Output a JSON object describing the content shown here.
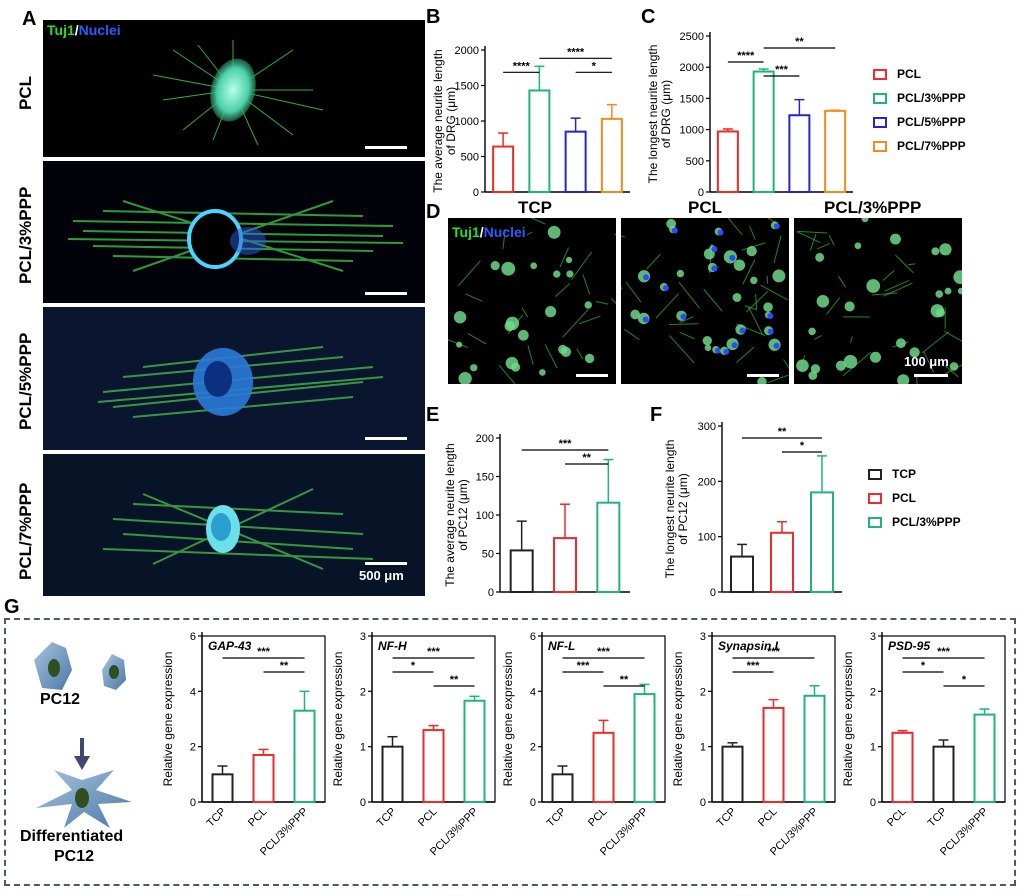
{
  "panels": {
    "A": "A",
    "B": "B",
    "C": "C",
    "D": "D",
    "E": "E",
    "F": "F",
    "G": "G"
  },
  "panelA": {
    "stain": {
      "a": "Tuj1",
      "sep": "/",
      "b": "Nuclei"
    },
    "rows": [
      "PCL",
      "PCL/3%PPP",
      "PCL/5%PPP",
      "PCL/7%PPP"
    ],
    "scale": "500 μm"
  },
  "panelD": {
    "stain": {
      "a": "Tuj1",
      "sep": "/",
      "b": "Nuclei"
    },
    "titles": [
      "TCP",
      "PCL",
      "PCL/3%PPP"
    ],
    "scale": "100 μm"
  },
  "legend1": [
    {
      "label": "PCL",
      "color": "#ee2a2a"
    },
    {
      "label": "PCL/3%PPP",
      "color": "#1fb57a"
    },
    {
      "label": "PCL/5%PPP",
      "color": "#2424d6"
    },
    {
      "label": "PCL/7%PPP",
      "color": "#f28c1e"
    }
  ],
  "legend2": [
    {
      "label": "TCP",
      "color": "#222222"
    },
    {
      "label": "PCL",
      "color": "#ee2a2a"
    },
    {
      "label": "PCL/3%PPP",
      "color": "#1fb57a"
    }
  ],
  "panelG": {
    "pc12": "PC12",
    "diff1": "Differentiated",
    "diff2": "PC12"
  },
  "chart_data": [
    {
      "id": "B",
      "type": "bar",
      "categories": [
        "PCL",
        "PCL/3%PPP",
        "PCL/5%PPP",
        "PCL/7%PPP"
      ],
      "values": [
        640,
        1430,
        850,
        1030
      ],
      "errors": [
        190,
        340,
        190,
        200
      ],
      "ylabel": [
        "The average neurite length",
        "of DRG (μm)"
      ],
      "ylim": [
        0,
        2000
      ],
      "yticks": [
        0,
        500,
        1000,
        1500,
        2000
      ],
      "colors": [
        "#ee2a2a",
        "#1fb57a",
        "#2424d6",
        "#f28c1e"
      ],
      "italic_title": "",
      "sig": [
        {
          "a": 0,
          "b": 1,
          "text": "****"
        },
        {
          "a": 1,
          "b": 3,
          "text": "****"
        },
        {
          "a": 2,
          "b": 3,
          "text": "*"
        }
      ]
    },
    {
      "id": "C",
      "type": "bar",
      "categories": [
        "PCL",
        "PCL/3%PPP",
        "PCL/5%PPP",
        "PCL/7%PPP"
      ],
      "values": [
        970,
        1930,
        1230,
        1300
      ],
      "errors": [
        40,
        40,
        250,
        10
      ],
      "ylabel": [
        "The longest neurite length",
        "of DRG (μm)"
      ],
      "ylim": [
        0,
        2500
      ],
      "yticks": [
        0,
        500,
        1000,
        1500,
        2000,
        2500
      ],
      "colors": [
        "#ee2a2a",
        "#1fb57a",
        "#2424d6",
        "#f28c1e"
      ],
      "italic_title": "",
      "sig": [
        {
          "a": 0,
          "b": 1,
          "text": "****"
        },
        {
          "a": 1,
          "b": 2,
          "text": "***"
        },
        {
          "a": 1,
          "b": 3,
          "text": "**"
        }
      ]
    },
    {
      "id": "E",
      "type": "bar",
      "categories": [
        "TCP",
        "PCL",
        "PCL/3%PPP"
      ],
      "values": [
        54,
        70,
        116
      ],
      "errors": [
        38,
        44,
        56
      ],
      "ylabel": [
        "The average neurite length",
        "of PC12 (μm)"
      ],
      "ylim": [
        0,
        200
      ],
      "yticks": [
        0,
        50,
        100,
        150,
        200
      ],
      "colors": [
        "#222222",
        "#ee2a2a",
        "#1fb57a"
      ],
      "italic_title": "",
      "sig": [
        {
          "a": 0,
          "b": 2,
          "text": "***"
        },
        {
          "a": 1,
          "b": 2,
          "text": "**"
        }
      ]
    },
    {
      "id": "F",
      "type": "bar",
      "categories": [
        "TCP",
        "PCL",
        "PCL/3%PPP"
      ],
      "values": [
        64,
        107,
        180
      ],
      "errors": [
        22,
        20,
        66
      ],
      "ylabel": [
        "The longest neurite length",
        "of PC12 (μm)"
      ],
      "ylim": [
        0,
        300
      ],
      "yticks": [
        0,
        100,
        200,
        300
      ],
      "colors": [
        "#222222",
        "#ee2a2a",
        "#1fb57a"
      ],
      "italic_title": "",
      "sig": [
        {
          "a": 0,
          "b": 2,
          "text": "**"
        },
        {
          "a": 1,
          "b": 2,
          "text": "*"
        }
      ]
    },
    {
      "id": "G1",
      "type": "bar",
      "categories": [
        "TCP",
        "PCL",
        "PCL/3%PPP"
      ],
      "values": [
        1.0,
        1.7,
        3.3
      ],
      "errors": [
        0.3,
        0.2,
        0.7
      ],
      "ylabel": [
        "Relative gene expression"
      ],
      "ylim": [
        0,
        6
      ],
      "yticks": [
        0,
        2,
        4,
        6
      ],
      "colors": [
        "#222222",
        "#ee2a2a",
        "#1fb57a"
      ],
      "italic_title": "GAP-43",
      "sig": [
        {
          "a": 0,
          "b": 2,
          "text": "***"
        },
        {
          "a": 1,
          "b": 2,
          "text": "**"
        }
      ]
    },
    {
      "id": "G2",
      "type": "bar",
      "categories": [
        "TCP",
        "PCL",
        "PCL/3%PPP"
      ],
      "values": [
        1.0,
        1.3,
        1.83
      ],
      "errors": [
        0.18,
        0.08,
        0.08
      ],
      "ylabel": [
        "Relative gene expression"
      ],
      "ylim": [
        0,
        3
      ],
      "yticks": [
        0,
        1,
        2,
        3
      ],
      "colors": [
        "#222222",
        "#ee2a2a",
        "#1fb57a"
      ],
      "italic_title": "NF-H",
      "sig": [
        {
          "a": 0,
          "b": 1,
          "text": "*"
        },
        {
          "a": 0,
          "b": 2,
          "text": "***"
        },
        {
          "a": 1,
          "b": 2,
          "text": "**"
        }
      ]
    },
    {
      "id": "G3",
      "type": "bar",
      "categories": [
        "TCP",
        "PCL",
        "PCL/3%PPP"
      ],
      "values": [
        1.0,
        2.5,
        3.9
      ],
      "errors": [
        0.3,
        0.45,
        0.35
      ],
      "ylabel": [
        "Relative gene expression"
      ],
      "ylim": [
        0,
        6
      ],
      "yticks": [
        0,
        2,
        4,
        6
      ],
      "colors": [
        "#222222",
        "#ee2a2a",
        "#1fb57a"
      ],
      "italic_title": "NF-L",
      "sig": [
        {
          "a": 0,
          "b": 1,
          "text": "***"
        },
        {
          "a": 0,
          "b": 2,
          "text": "***"
        },
        {
          "a": 1,
          "b": 2,
          "text": "**"
        }
      ]
    },
    {
      "id": "G4",
      "type": "bar",
      "categories": [
        "TCP",
        "PCL",
        "PCL/3%PPP"
      ],
      "values": [
        1.0,
        1.7,
        1.92
      ],
      "errors": [
        0.07,
        0.15,
        0.18
      ],
      "ylabel": [
        "Relative gene expression"
      ],
      "ylim": [
        0,
        3
      ],
      "yticks": [
        0,
        1,
        2,
        3
      ],
      "colors": [
        "#222222",
        "#ee2a2a",
        "#1fb57a"
      ],
      "italic_title": "Synapsin I",
      "sig": [
        {
          "a": 0,
          "b": 1,
          "text": "***"
        },
        {
          "a": 0,
          "b": 2,
          "text": "***"
        }
      ]
    },
    {
      "id": "G5",
      "type": "bar",
      "categories": [
        "PCL",
        "TCP",
        "PCL/3%PPP"
      ],
      "values": [
        1.25,
        1.0,
        1.58
      ],
      "errors": [
        0.04,
        0.12,
        0.1
      ],
      "ylabel": [
        "Relative gene expression"
      ],
      "ylim": [
        0,
        3
      ],
      "yticks": [
        0,
        1,
        2,
        3
      ],
      "colors": [
        "#ee2a2a",
        "#222222",
        "#1fb57a"
      ],
      "italic_title": "PSD-95",
      "sig": [
        {
          "a": 0,
          "b": 1,
          "text": "*"
        },
        {
          "a": 0,
          "b": 2,
          "text": "***"
        },
        {
          "a": 1,
          "b": 2,
          "text": "*"
        }
      ]
    }
  ]
}
